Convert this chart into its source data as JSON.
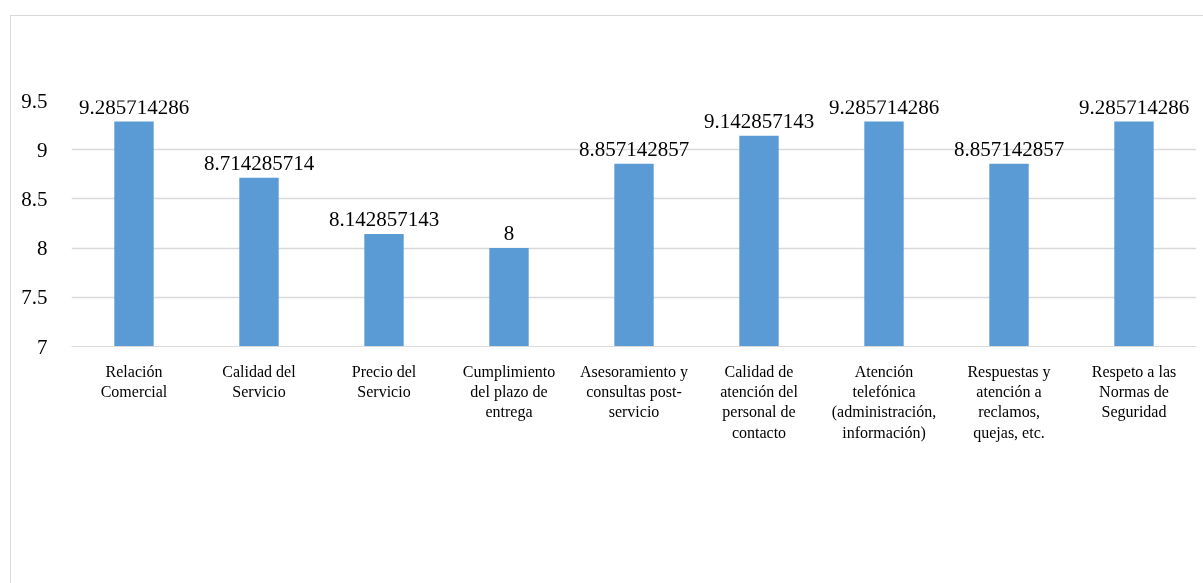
{
  "chart_data": {
    "type": "bar",
    "categories": [
      "Relación Comercial",
      "Calidad del Servicio",
      "Precio del Servicio",
      "Cumplimiento del plazo de entrega",
      "Asesoramiento y consultas post-servicio",
      "Calidad de atención del personal de contacto",
      "Atención telefónica (administración, información)",
      "Respuestas y atención a reclamos, quejas, etc.",
      "Respeto a las Normas de Seguridad"
    ],
    "values": [
      9.285714286,
      8.714285714,
      8.142857143,
      8,
      8.857142857,
      9.142857143,
      9.285714286,
      8.857142857,
      9.285714286
    ],
    "color": "#5b9bd5",
    "ylim": [
      7,
      9.5
    ],
    "yticks": [
      7,
      7.5,
      8,
      8.5,
      9,
      9.5
    ],
    "grid": "y",
    "data_labels": true
  }
}
